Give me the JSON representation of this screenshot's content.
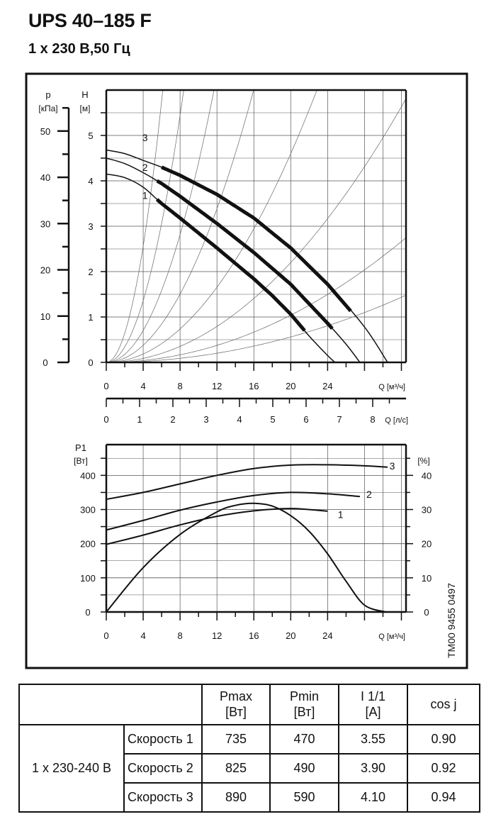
{
  "header": {
    "title": "UPS 40–185 F",
    "subtitle": "1 x 230 В,50 Гц"
  },
  "code_label": "TM00 9455 0497",
  "chart_data": [
    {
      "type": "line",
      "name": "head-chart",
      "axes": {
        "p_label": [
          "p",
          "[кПа]"
        ],
        "h_label": [
          "H",
          "[м]"
        ],
        "q_label": "Q [м³/ч]",
        "qls_label": "Q [л/с]",
        "h_ticks": [
          "0",
          "1",
          "2",
          "3",
          "4",
          "5"
        ],
        "p_ticks": [
          "0",
          "10",
          "20",
          "30",
          "40",
          "50"
        ],
        "q_ticks": [
          "0",
          "4",
          "8",
          "12",
          "16",
          "20",
          "24"
        ],
        "qls_ticks": [
          "0",
          "1",
          "2",
          "3",
          "4",
          "5",
          "6",
          "7",
          "8"
        ],
        "xlim": [
          0,
          32.5
        ],
        "ylim": [
          0,
          6
        ],
        "p_lim": [
          0,
          58.86
        ],
        "qls_lim": [
          0,
          9
        ]
      },
      "series": [
        {
          "name": "1",
          "points": [
            [
              0,
              4.15
            ],
            [
              2,
              4.07
            ],
            [
              4,
              3.86
            ],
            [
              6,
              3.5
            ],
            [
              8,
              3.18
            ],
            [
              12,
              2.52
            ],
            [
              16,
              1.84
            ],
            [
              18,
              1.47
            ],
            [
              20,
              1.06
            ],
            [
              22,
              0.58
            ],
            [
              24,
              0.15
            ],
            [
              24.8,
              0
            ]
          ],
          "bold": [
            5.5,
            21.8
          ],
          "label_at": [
            4.2,
            3.68
          ]
        },
        {
          "name": "2",
          "points": [
            [
              0,
              4.5
            ],
            [
              2,
              4.38
            ],
            [
              4,
              4.18
            ],
            [
              6,
              3.94
            ],
            [
              8,
              3.66
            ],
            [
              12,
              3.06
            ],
            [
              16,
              2.42
            ],
            [
              20,
              1.72
            ],
            [
              24,
              0.86
            ],
            [
              26,
              0.4
            ],
            [
              27.5,
              0
            ]
          ],
          "bold": [
            5.5,
            24.7
          ],
          "label_at": [
            4.2,
            4.3
          ]
        },
        {
          "name": "3",
          "points": [
            [
              0,
              4.68
            ],
            [
              2,
              4.6
            ],
            [
              4,
              4.45
            ],
            [
              6,
              4.3
            ],
            [
              8,
              4.12
            ],
            [
              12,
              3.7
            ],
            [
              16,
              3.18
            ],
            [
              20,
              2.52
            ],
            [
              24,
              1.72
            ],
            [
              28,
              0.78
            ],
            [
              30.5,
              0
            ]
          ],
          "bold": [
            6,
            26.5
          ],
          "label_at": [
            4.2,
            4.95
          ]
        }
      ],
      "system_curve_coefficients": [
        0.16,
        0.085,
        0.044,
        0.0235,
        0.0115,
        0.0055,
        0.0026,
        0.0014
      ]
    },
    {
      "type": "line",
      "name": "power-chart",
      "axes": {
        "p1_label": [
          "P1",
          "[Вт]"
        ],
        "pct_label": "[%]",
        "q_label": "Q [м³/ч]",
        "p1_ticks": [
          "0",
          "100",
          "200",
          "300",
          "400"
        ],
        "pct_ticks": [
          "0",
          "10",
          "20",
          "30",
          "40"
        ],
        "q_ticks": [
          "0",
          "4",
          "8",
          "12",
          "16",
          "20",
          "24"
        ],
        "xlim": [
          0,
          32.5
        ],
        "ylim": [
          0,
          490
        ],
        "pct_lim": [
          0,
          49
        ]
      },
      "series": [
        {
          "name": "1",
          "points": [
            [
              0,
              198
            ],
            [
              4,
              225
            ],
            [
              8,
              255
            ],
            [
              12,
              280
            ],
            [
              16,
              296
            ],
            [
              20,
              303
            ],
            [
              24,
              295
            ]
          ],
          "label_at": [
            25.4,
            285
          ]
        },
        {
          "name": "2",
          "points": [
            [
              0,
              240
            ],
            [
              4,
              268
            ],
            [
              8,
              298
            ],
            [
              12,
              322
            ],
            [
              16,
              341
            ],
            [
              20,
              350
            ],
            [
              24,
              346
            ],
            [
              27.5,
              338
            ]
          ],
          "label_at": [
            28.5,
            345
          ]
        },
        {
          "name": "3",
          "points": [
            [
              0,
              330
            ],
            [
              4,
              350
            ],
            [
              8,
              375
            ],
            [
              12,
              400
            ],
            [
              16,
              420
            ],
            [
              20,
              430
            ],
            [
              24,
              431
            ],
            [
              28,
              428
            ],
            [
              30.5,
              424
            ]
          ],
          "label_at": [
            31,
            428
          ]
        },
        {
          "name": "efficiency",
          "unit": "%",
          "points": [
            [
              0,
              0
            ],
            [
              4,
              13
            ],
            [
              8,
              22.7
            ],
            [
              12,
              29.3
            ],
            [
              14,
              31.2
            ],
            [
              16,
              31.8
            ],
            [
              18,
              31
            ],
            [
              20,
              28.2
            ],
            [
              22,
              23.6
            ],
            [
              24,
              17
            ],
            [
              26,
              9
            ],
            [
              28,
              2
            ],
            [
              30.3,
              0
            ]
          ]
        }
      ]
    }
  ],
  "table": {
    "headers": [
      "",
      "Pmax\n[Вт]",
      "Pmin\n[Вт]",
      "I 1/1\n[A]",
      "cos j"
    ],
    "group_label": "1 x 230-240 В",
    "rows": [
      {
        "speed": "Скорость 1",
        "pmax": "735",
        "pmin": "470",
        "i": "3.55",
        "cos": "0.90"
      },
      {
        "speed": "Скорость 2",
        "pmax": "825",
        "pmin": "490",
        "i": "3.90",
        "cos": "0.92"
      },
      {
        "speed": "Скорость 3",
        "pmax": "890",
        "pmin": "590",
        "i": "4.10",
        "cos": "0.94"
      }
    ]
  }
}
